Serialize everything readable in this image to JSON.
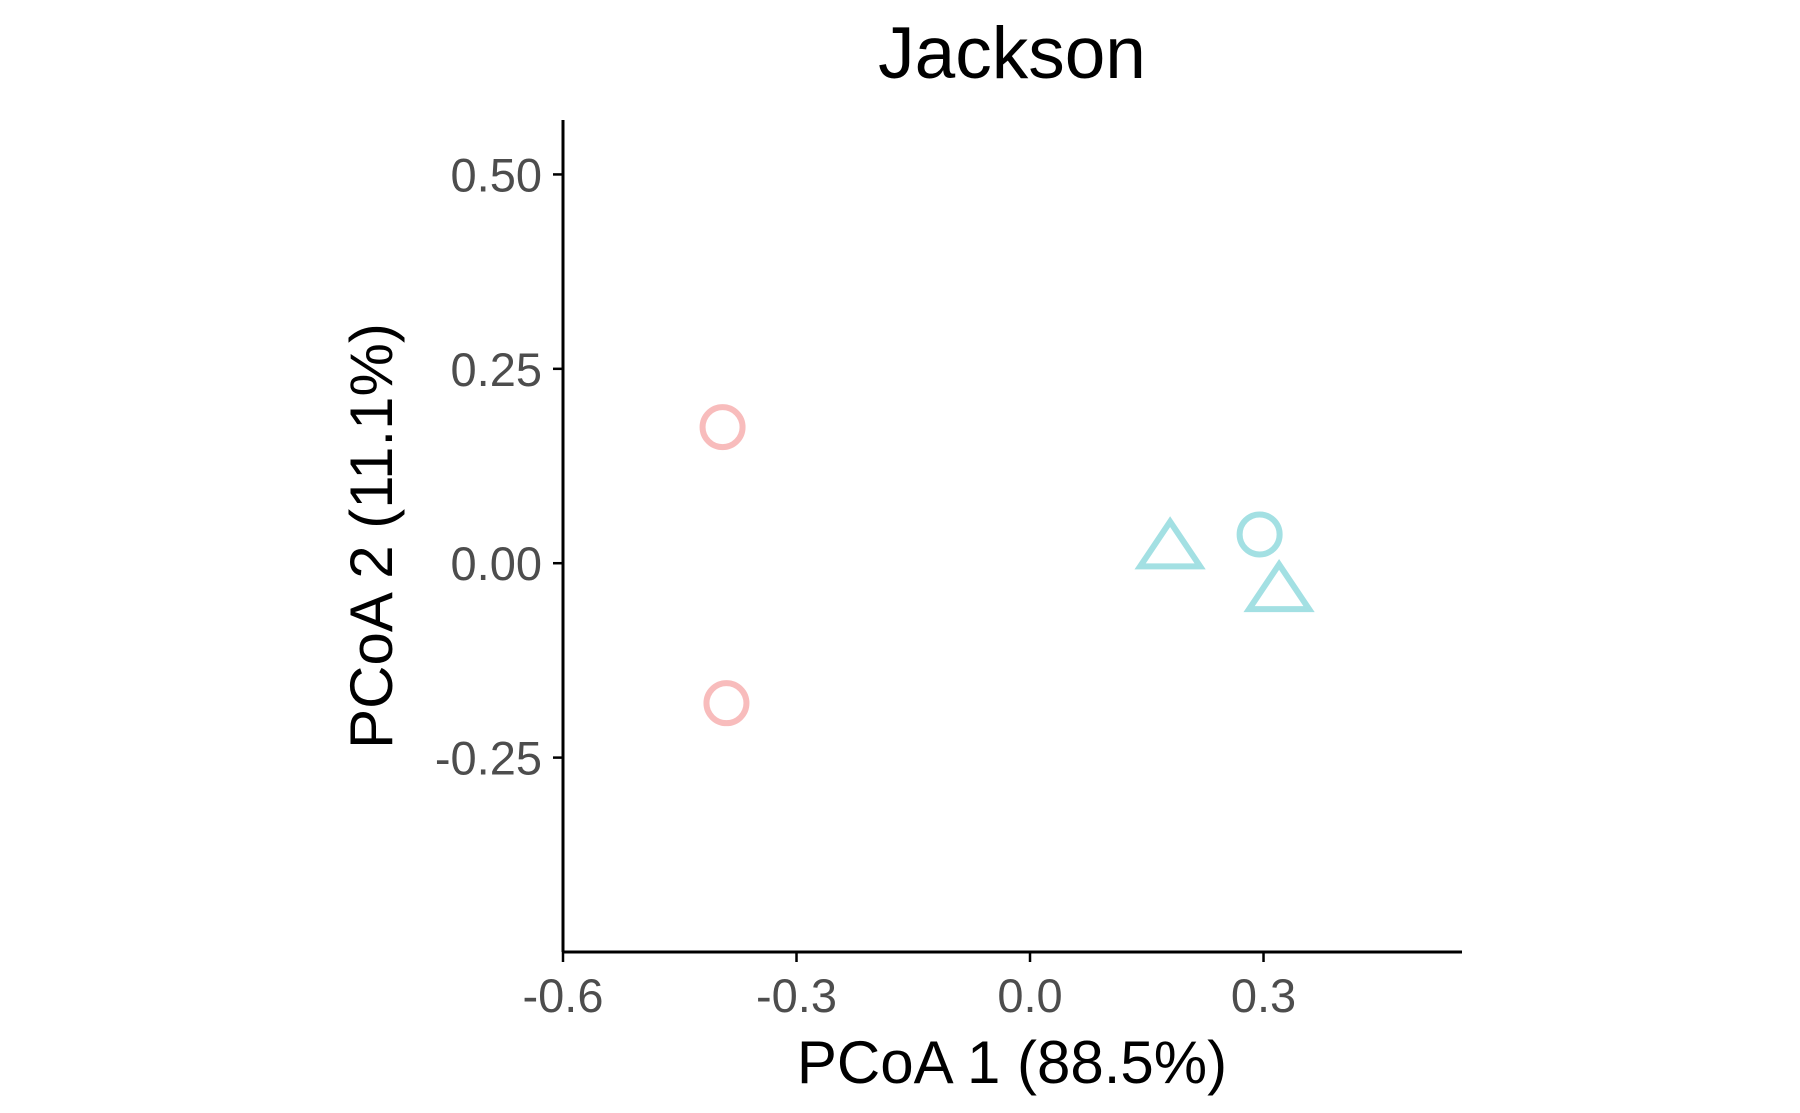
{
  "chart_data": {
    "type": "scatter",
    "title": "Jackson",
    "xlabel": "PCoA 1 (88.5%)",
    "ylabel": "PCoA 2 (11.1%)",
    "xlim": [
      -0.6,
      0.555
    ],
    "ylim": [
      -0.5,
      0.57
    ],
    "x_ticks": [
      -0.6,
      -0.3,
      0.0,
      0.3
    ],
    "x_tick_labels": [
      "-0.6",
      "-0.3",
      "0.0",
      "0.3"
    ],
    "y_ticks": [
      0.5,
      0.25,
      0.0,
      -0.25
    ],
    "y_tick_labels": [
      "0.50",
      "0.25",
      "0.00",
      "-0.25"
    ],
    "grid": false,
    "legend": "none",
    "colors": {
      "group_a": "#f8bcbc",
      "group_b": "#a3e0e3"
    },
    "points": [
      {
        "x": -0.395,
        "y": 0.175,
        "shape": "circle",
        "color": "#f8bcbc"
      },
      {
        "x": -0.39,
        "y": -0.18,
        "shape": "circle",
        "color": "#f8bcbc"
      },
      {
        "x": 0.18,
        "y": 0.02,
        "shape": "triangle",
        "color": "#a3e0e3"
      },
      {
        "x": 0.295,
        "y": 0.037,
        "shape": "circle",
        "color": "#a3e0e3"
      },
      {
        "x": 0.32,
        "y": -0.035,
        "shape": "triangle",
        "color": "#a3e0e3"
      }
    ]
  }
}
